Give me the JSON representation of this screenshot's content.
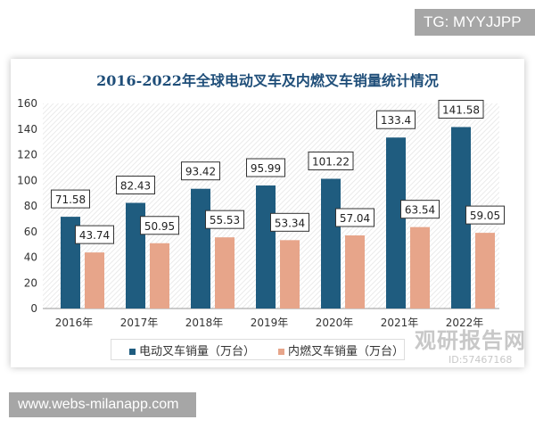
{
  "top_badge": "TG: MYYJJPP",
  "bottom_badge": "www.webs-milanapp.com",
  "watermark": {
    "name": "观研报告网",
    "id": "ID:57467168"
  },
  "chart_data": {
    "type": "bar",
    "title": "2016-2022年全球电动叉车及内燃叉车销量统计情况",
    "categories": [
      "2016年",
      "2017年",
      "2018年",
      "2019年",
      "2020年",
      "2021年",
      "2022年"
    ],
    "series": [
      {
        "name": "电动叉车销量（万台）",
        "color": "#1f5c7f",
        "values": [
          71.58,
          82.43,
          93.42,
          95.99,
          101.22,
          133.4,
          141.58
        ]
      },
      {
        "name": "内燃叉车销量（万台）",
        "color": "#e7a58a",
        "values": [
          43.74,
          50.95,
          55.53,
          53.34,
          57.04,
          63.54,
          59.05
        ]
      }
    ],
    "ylim": [
      0,
      160
    ],
    "yticks": [
      0,
      20,
      40,
      60,
      80,
      100,
      120,
      140,
      160
    ],
    "grid": false,
    "legend": "bottom"
  }
}
